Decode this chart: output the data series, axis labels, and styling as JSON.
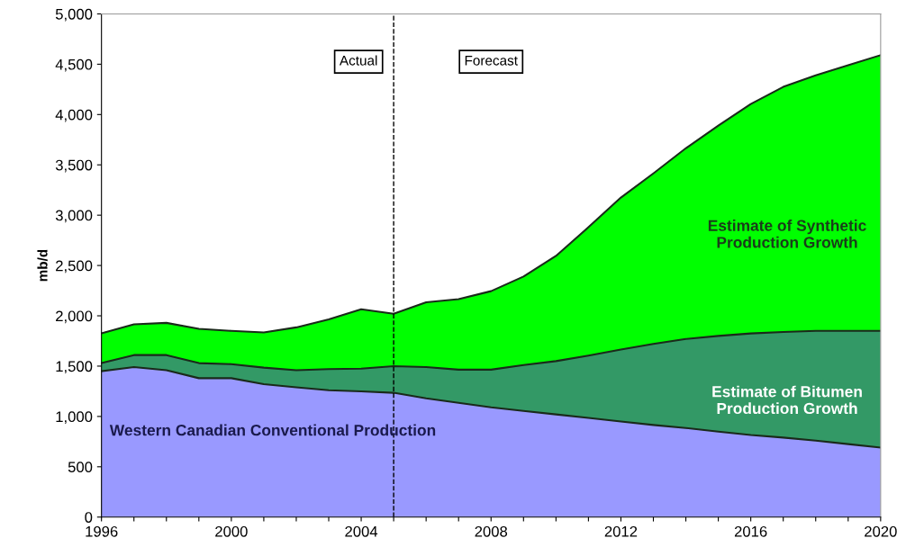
{
  "chart_data": {
    "type": "area",
    "stacked": true,
    "ylabel": "mb/d",
    "x": [
      1996,
      1997,
      1998,
      1999,
      2000,
      2001,
      2002,
      2003,
      2004,
      2005,
      2006,
      2007,
      2008,
      2009,
      2010,
      2011,
      2012,
      2013,
      2014,
      2015,
      2016,
      2017,
      2018,
      2019,
      2020
    ],
    "series": [
      {
        "name": "Western Canadian Conventional Production",
        "color": "#9999ff",
        "values": [
          1450,
          1490,
          1460,
          1380,
          1380,
          1320,
          1290,
          1260,
          1250,
          1235,
          1180,
          1135,
          1090,
          1055,
          1020,
          985,
          950,
          915,
          885,
          850,
          815,
          790,
          760,
          725,
          690
        ]
      },
      {
        "name": "Estimate of Bitumen Production Growth",
        "color": "#339966",
        "values": [
          80,
          120,
          150,
          150,
          140,
          165,
          170,
          210,
          225,
          265,
          310,
          330,
          375,
          455,
          530,
          620,
          715,
          805,
          885,
          950,
          1010,
          1050,
          1090,
          1125,
          1160
        ]
      },
      {
        "name": "Estimate of Synthetic Production Growth",
        "color": "#00ff00",
        "values": [
          295,
          305,
          320,
          340,
          330,
          350,
          425,
          495,
          590,
          520,
          645,
          700,
          780,
          880,
          1045,
          1275,
          1510,
          1695,
          1895,
          2090,
          2280,
          2435,
          2540,
          2640,
          2740
        ]
      }
    ],
    "xlim": [
      1996,
      2020
    ],
    "xticks": [
      1996,
      {
        "value": 1997,
        "label": null
      },
      {
        "value": 1998,
        "label": null
      },
      {
        "value": 1999,
        "label": null
      },
      2000,
      {
        "value": 2001,
        "label": null
      },
      {
        "value": 2002,
        "label": null
      },
      {
        "value": 2003,
        "label": null
      },
      2004,
      {
        "value": 2005,
        "label": null
      },
      {
        "value": 2006,
        "label": null
      },
      {
        "value": 2007,
        "label": null
      },
      2008,
      {
        "value": 2009,
        "label": null
      },
      {
        "value": 2010,
        "label": null
      },
      {
        "value": 2011,
        "label": null
      },
      2012,
      {
        "value": 2013,
        "label": null
      },
      {
        "value": 2014,
        "label": null
      },
      {
        "value": 2015,
        "label": null
      },
      2016,
      {
        "value": 2017,
        "label": null
      },
      {
        "value": 2018,
        "label": null
      },
      {
        "value": 2019,
        "label": null
      },
      2020
    ],
    "ylim": [
      0,
      5000
    ],
    "yticks": [
      0,
      500,
      {
        "value": 1000,
        "label": "1,000"
      },
      {
        "value": 1500,
        "label": "1,500"
      },
      {
        "value": 2000,
        "label": "2,000"
      },
      {
        "value": 2500,
        "label": "2,500"
      },
      {
        "value": 3000,
        "label": "3,000"
      },
      {
        "value": 3500,
        "label": "3,500"
      },
      {
        "value": 4000,
        "label": "4,000"
      },
      {
        "value": 4500,
        "label": "4,500"
      },
      {
        "value": 5000,
        "label": "5,000"
      }
    ],
    "ref_lines": [
      {
        "axis": "x",
        "value": 2005,
        "label": null,
        "color": "#000000",
        "line_style": "dashed"
      }
    ],
    "annotations": [
      "Actual",
      "Forecast"
    ],
    "grid": false
  }
}
